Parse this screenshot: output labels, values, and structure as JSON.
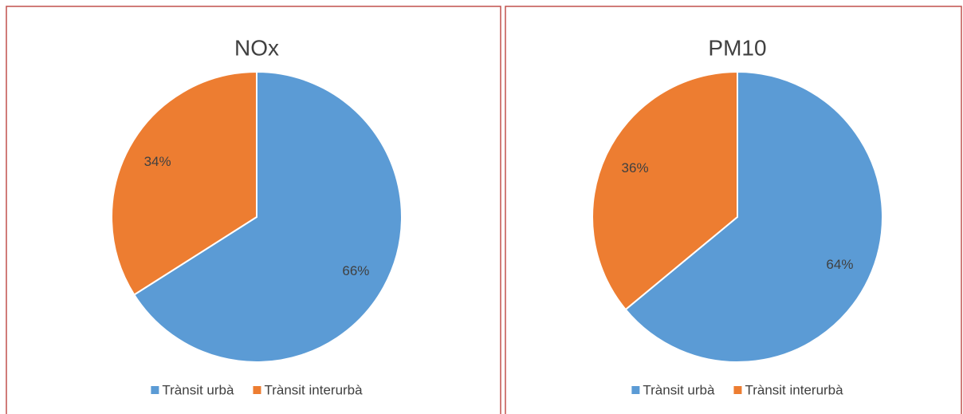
{
  "chart_data": [
    {
      "type": "pie",
      "title": "NOx",
      "categories": [
        "Trànsit urbà",
        "Trànsit interurbà"
      ],
      "values": [
        66,
        34
      ],
      "value_labels": [
        "66%",
        "34%"
      ],
      "colors": [
        "#5b9bd5",
        "#ed7d31"
      ]
    },
    {
      "type": "pie",
      "title": "PM10",
      "categories": [
        "Trànsit urbà",
        "Trànsit interurbà"
      ],
      "values": [
        64,
        36
      ],
      "value_labels": [
        "64%",
        "36%"
      ],
      "colors": [
        "#5b9bd5",
        "#ed7d31"
      ]
    }
  ]
}
